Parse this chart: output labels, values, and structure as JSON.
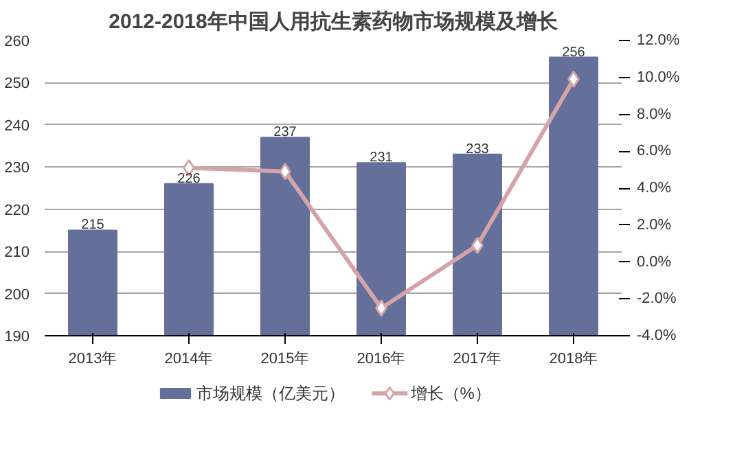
{
  "chart_data": {
    "type": "bar",
    "title": "2012-2018年中国人用抗生素药物市场规模及增长",
    "categories": [
      "2013年",
      "2014年",
      "2015年",
      "2016年",
      "2017年",
      "2018年"
    ],
    "series": [
      {
        "name": "市场规模（亿美元）",
        "color": "#64709a",
        "values": [
          215,
          226,
          237,
          231,
          233,
          256
        ],
        "value_labels": [
          "215",
          "226",
          "237",
          "231",
          "233",
          "256"
        ]
      },
      {
        "name": "增长（%）",
        "type": "line",
        "axis": "y2",
        "color": "#d4a5a8",
        "marker": "diamond",
        "values": [
          null,
          5.1,
          4.9,
          -2.5,
          0.9,
          9.9
        ]
      }
    ],
    "ylim": [
      190,
      260
    ],
    "yticks": [
      190,
      200,
      210,
      220,
      230,
      240,
      250,
      260
    ],
    "y2lim": [
      -4,
      12
    ],
    "y2ticks": [
      {
        "value": -4,
        "label": "-4.0%"
      },
      {
        "value": -2,
        "label": "-2.0%"
      },
      {
        "value": 0,
        "label": "0.0%"
      },
      {
        "value": 2,
        "label": "2.0%"
      },
      {
        "value": 4,
        "label": "4.0%"
      },
      {
        "value": 6,
        "label": "6.0%"
      },
      {
        "value": 8,
        "label": "8.0%"
      },
      {
        "value": 10,
        "label": "10.0%"
      },
      {
        "value": 12,
        "label": "12.0%"
      }
    ],
    "grid": "y",
    "legend": "bottom"
  }
}
